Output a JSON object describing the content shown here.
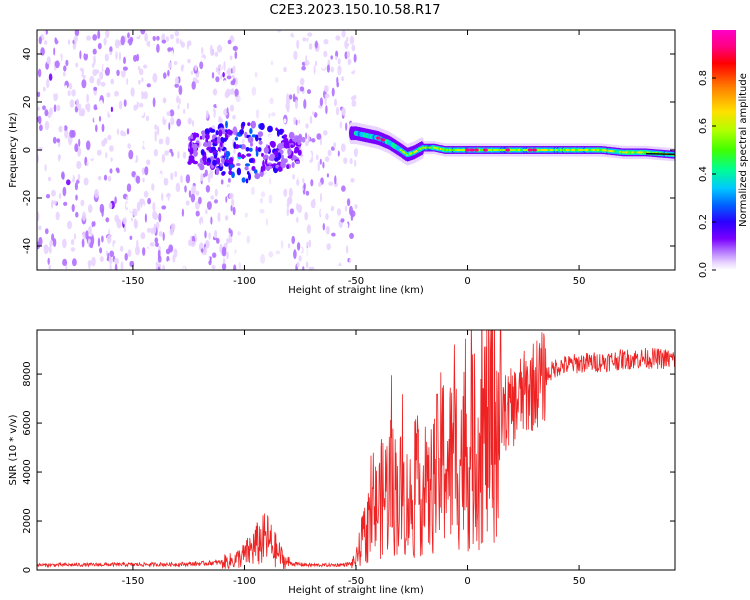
{
  "title": "C2E3.2023.150.10.58.R17",
  "colors": {
    "snr_line": "#ee2222",
    "colormap": [
      "#ffffff",
      "#e9d4ff",
      "#b070ff",
      "#7a00ff",
      "#2a00ff",
      "#0060ff",
      "#00c8ff",
      "#00ff90",
      "#40ff00",
      "#b0ff00",
      "#ffe000",
      "#ff8000",
      "#ff0000",
      "#ff0080",
      "#ff00c8"
    ]
  },
  "chart_data": [
    {
      "type": "heatmap",
      "title": "C2E3.2023.150.10.58.R17",
      "xlabel": "Height of straight line (km)",
      "ylabel": "Frequency (Hz)",
      "xlim": [
        -193,
        93
      ],
      "ylim": [
        -50,
        50
      ],
      "x_ticks": [
        -150,
        -100,
        -50,
        0,
        50
      ],
      "y_ticks": [
        -40,
        -20,
        0,
        20,
        40
      ],
      "colorbar": {
        "label": "Normalized spectral amplitude",
        "range": [
          0,
          1
        ],
        "ticks": [
          0.0,
          0.2,
          0.4,
          0.6,
          0.8
        ]
      },
      "signal_band": {
        "x": [
          -50,
          -45,
          -40,
          -35,
          -30,
          -27,
          -24,
          -20,
          -15,
          -10,
          -5,
          0,
          5,
          10,
          20,
          30,
          40,
          50,
          60,
          70,
          80,
          93
        ],
        "freq_hz": [
          7,
          6,
          5,
          3,
          0,
          -2,
          -1,
          1,
          1,
          0,
          0,
          0,
          0,
          0,
          0,
          0,
          0,
          0,
          0,
          -1,
          -1,
          -2
        ]
      },
      "noise_segments": [
        {
          "x_range": [
            -193,
            -103
          ],
          "level": "strong"
        },
        {
          "x_range": [
            -103,
            -82
          ],
          "level": "weak"
        },
        {
          "x_range": [
            -82,
            -50
          ],
          "level": "strong"
        }
      ],
      "cluster": {
        "x_range": [
          -125,
          -75
        ],
        "freq_range": [
          -12,
          15
        ]
      }
    },
    {
      "type": "line",
      "xlabel": "Height of straight line (km)",
      "ylabel": "SNR (10 * v/v)",
      "xlim": [
        -193,
        93
      ],
      "ylim": [
        0,
        9800
      ],
      "x_ticks": [
        -150,
        -100,
        -50,
        0,
        50
      ],
      "y_ticks": [
        0,
        2000,
        4000,
        6000,
        8000
      ],
      "series": [
        {
          "x": [
            -193,
            -160,
            -130,
            -120,
            -112,
            -105,
            -100,
            -95,
            -90,
            -87,
            -84,
            -82,
            -78,
            -70,
            -60,
            -55,
            -52,
            -50,
            -47,
            -44,
            -41,
            -38,
            -35,
            -32,
            -30,
            -27,
            -24,
            -21,
            -18,
            -15,
            -12,
            -10,
            -8,
            -5,
            -2,
            0,
            3,
            6,
            9,
            12,
            15,
            18,
            21,
            24,
            27,
            30,
            35,
            40,
            50,
            60,
            70,
            80,
            93
          ],
          "y": [
            200,
            220,
            230,
            260,
            300,
            380,
            600,
            1000,
            1300,
            900,
            600,
            350,
            250,
            200,
            200,
            220,
            260,
            400,
            1300,
            1800,
            2500,
            3000,
            3400,
            3200,
            3100,
            2800,
            2600,
            3400,
            2800,
            3600,
            4400,
            4600,
            4300,
            4600,
            4800,
            4400,
            4900,
            5300,
            5700,
            6100,
            6300,
            6500,
            6700,
            7100,
            7300,
            7600,
            7900,
            8300,
            8450,
            8500,
            8600,
            8650,
            8600
          ]
        }
      ]
    }
  ]
}
